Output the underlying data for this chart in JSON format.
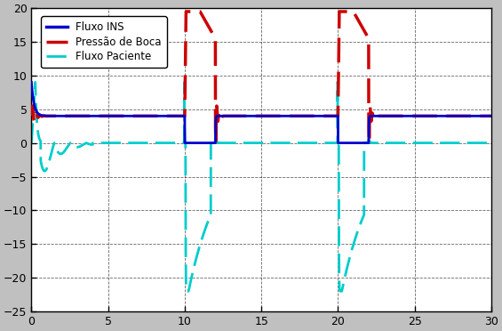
{
  "xlim": [
    0,
    30
  ],
  "ylim": [
    -25,
    20
  ],
  "yticks": [
    -25,
    -20,
    -15,
    -10,
    -5,
    0,
    5,
    10,
    15,
    20
  ],
  "xticks": [
    0,
    5,
    10,
    15,
    20,
    25,
    30
  ],
  "fig_bg_color": "#c0c0c0",
  "plot_bg_color": "#ffffff",
  "grid_color": "#000000",
  "line1_color": "#0000cc",
  "line2_color": "#cc0000",
  "line3_color": "#00cccc",
  "legend_labels": [
    "Fluxo INS",
    "Pressão de Boca",
    "Fluxo Paciente"
  ]
}
